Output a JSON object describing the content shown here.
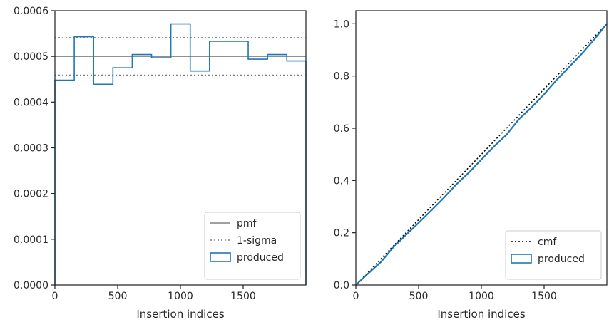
{
  "chart_data": [
    {
      "type": "step",
      "xlabel": "Insertion indices",
      "ylabel": "",
      "xlim": [
        0,
        2000
      ],
      "ylim": [
        0,
        0.0006
      ],
      "x_ticks": [
        0,
        500,
        1000,
        1500
      ],
      "x_tick_labels": [
        "0",
        "500",
        "1000",
        "1500"
      ],
      "y_ticks": [
        0,
        0.0001,
        0.0002,
        0.0003,
        0.0004,
        0.0005,
        0.0006
      ],
      "y_tick_labels": [
        "0.0000",
        "0.0001",
        "0.0002",
        "0.0003",
        "0.0004",
        "0.0005",
        "0.0006"
      ],
      "grid": false,
      "legend_position": "lower-right",
      "reference_lines": [
        {
          "name": "pmf",
          "value": 0.0005,
          "style": "solid",
          "color": "#808080"
        },
        {
          "name": "1-sigma",
          "values": [
            0.000459,
            0.000541
          ],
          "style": "dotted",
          "color": "#808080"
        }
      ],
      "series": [
        {
          "name": "produced",
          "color": "#1f77b4",
          "bin_edges": [
            0,
            154,
            308,
            462,
            616,
            770,
            924,
            1078,
            1232,
            1540,
            1694,
            1848,
            2000
          ],
          "values": [
            0.000448,
            0.000543,
            0.000439,
            0.000475,
            0.000504,
            0.000497,
            0.000571,
            0.000468,
            0.000533,
            0.000494,
            0.000504,
            0.00049
          ]
        }
      ]
    },
    {
      "type": "line",
      "xlabel": "Insertion indices",
      "ylabel": "",
      "xlim": [
        0,
        2000
      ],
      "ylim": [
        0,
        1.05
      ],
      "x_ticks": [
        0,
        500,
        1000,
        1500
      ],
      "x_tick_labels": [
        "0",
        "500",
        "1000",
        "1500"
      ],
      "y_ticks": [
        0,
        0.2,
        0.4,
        0.6,
        0.8,
        1.0
      ],
      "y_tick_labels": [
        "0.0",
        "0.2",
        "0.4",
        "0.6",
        "0.8",
        "1.0"
      ],
      "grid": false,
      "legend_position": "lower-right",
      "series": [
        {
          "name": "cmf",
          "style": "dotted",
          "color": "#000000",
          "x": [
            0,
            2000
          ],
          "y": [
            0,
            1.0
          ]
        },
        {
          "name": "produced",
          "style": "solid",
          "color": "#1f77b4",
          "x": [
            0,
            100,
            200,
            300,
            400,
            500,
            600,
            700,
            800,
            900,
            1000,
            1100,
            1200,
            1300,
            1400,
            1500,
            1600,
            1700,
            1800,
            1900,
            2000
          ],
          "y": [
            0,
            0.045,
            0.088,
            0.145,
            0.192,
            0.238,
            0.285,
            0.333,
            0.385,
            0.43,
            0.48,
            0.53,
            0.575,
            0.635,
            0.68,
            0.73,
            0.785,
            0.835,
            0.885,
            0.94,
            1.0
          ]
        }
      ]
    }
  ],
  "legends": [
    {
      "items": [
        {
          "label": "pmf"
        },
        {
          "label": "1-sigma"
        },
        {
          "label": "produced"
        }
      ]
    },
    {
      "items": [
        {
          "label": "cmf"
        },
        {
          "label": "produced"
        }
      ]
    }
  ]
}
